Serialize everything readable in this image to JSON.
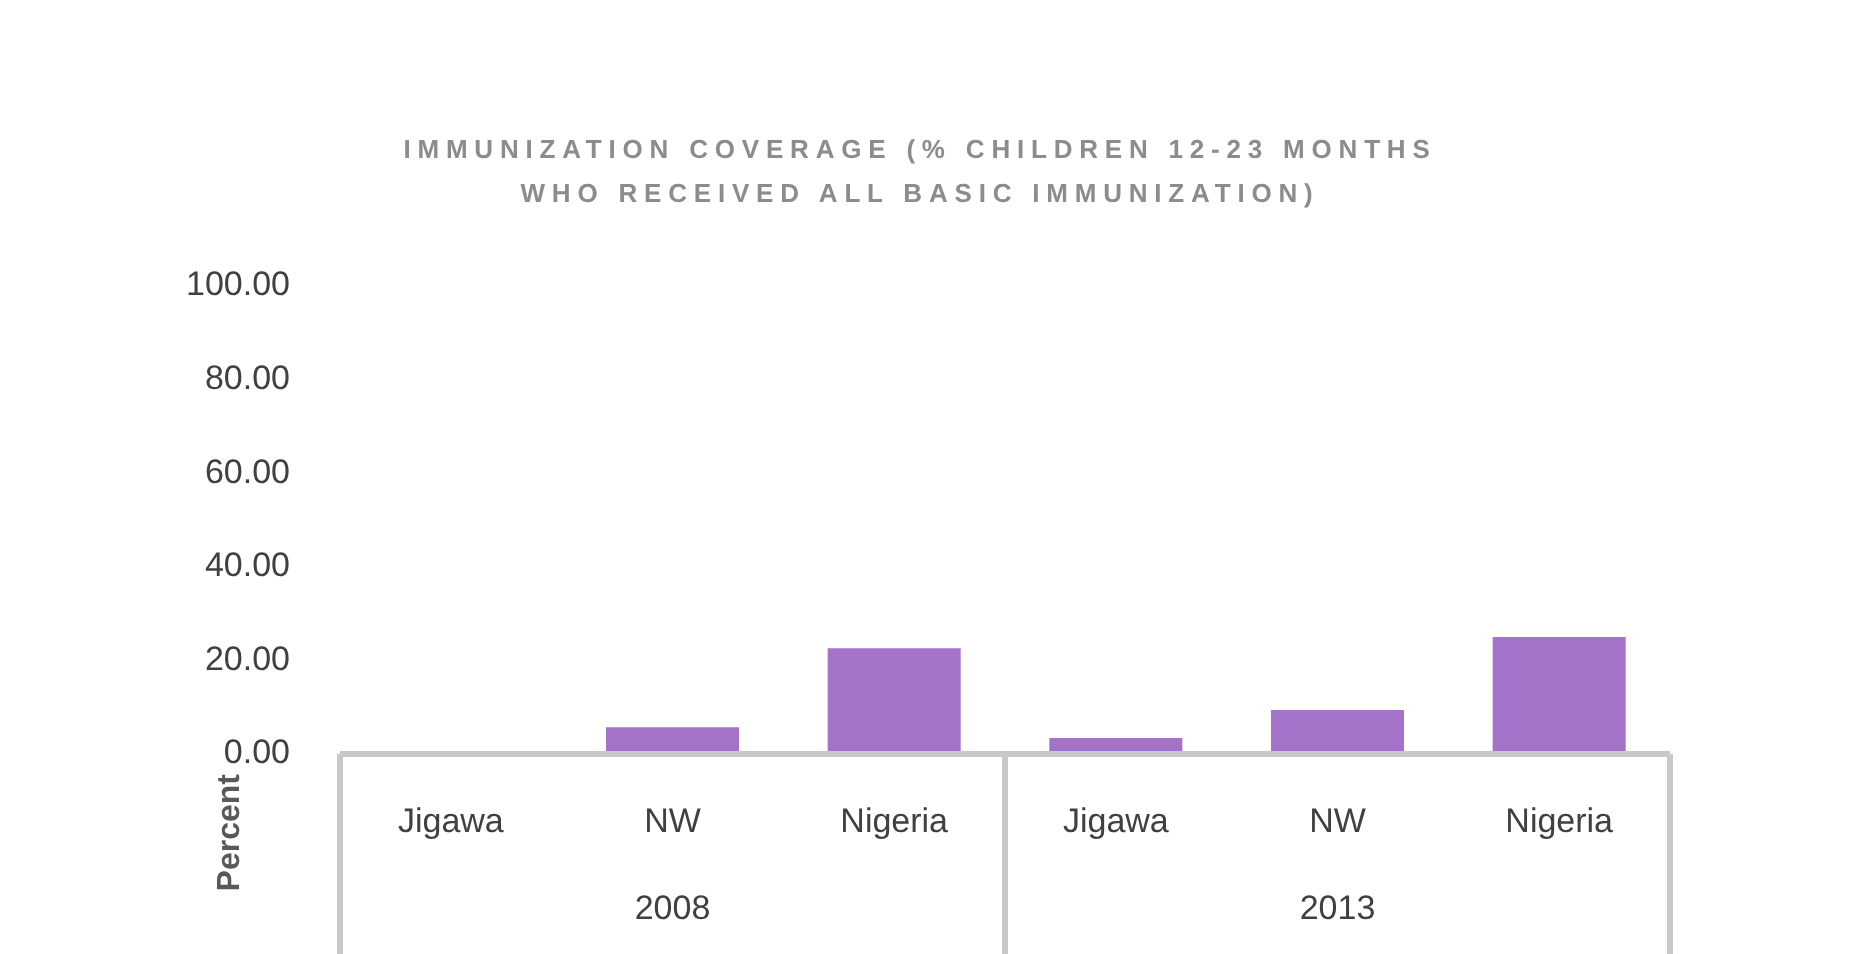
{
  "chart_data": {
    "type": "bar",
    "title": "IMMUNIZATION COVERAGE (% CHILDREN 12-23 MONTHS WHO RECEIVED ALL BASIC IMMUNIZATION)",
    "ylabel": "Percent",
    "categories": [
      "Jigawa",
      "NW",
      "Nigeria",
      "Jigawa",
      "NW",
      "Nigeria"
    ],
    "values": [
      null,
      5.7,
      22.6,
      3.4,
      9.4,
      25
    ],
    "color": "#a472c8",
    "annotations": [
      "2008",
      "2013"
    ],
    "ylim": [
      0,
      100
    ],
    "yticks": [
      {
        "value": 0,
        "label": "0.00"
      },
      {
        "value": 20,
        "label": "20.00"
      },
      {
        "value": 40,
        "label": "40.00"
      },
      {
        "value": 60,
        "label": "60.00"
      },
      {
        "value": 80,
        "label": "80.00"
      },
      {
        "value": 100,
        "label": "100.00"
      }
    ],
    "grid": false,
    "legend": false
  }
}
